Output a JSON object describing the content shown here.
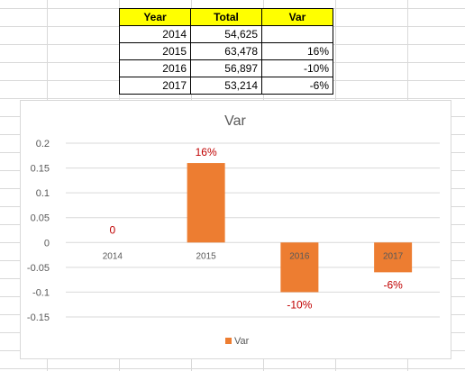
{
  "table": {
    "headers": [
      "Year",
      "Total",
      "Var"
    ],
    "rows": [
      {
        "year": "2014",
        "total": "54,625",
        "var": ""
      },
      {
        "year": "2015",
        "total": "63,478",
        "var": "16%"
      },
      {
        "year": "2016",
        "total": "56,897",
        "var": "-10%"
      },
      {
        "year": "2017",
        "total": "53,214",
        "var": "-6%"
      }
    ]
  },
  "chart_data": {
    "type": "bar",
    "title": "Var",
    "categories": [
      "2014",
      "2015",
      "2016",
      "2017"
    ],
    "series": [
      {
        "name": "Var",
        "values": [
          0,
          0.16,
          -0.1,
          -0.06
        ],
        "labels": [
          "0",
          "16%",
          "-10%",
          "-6%"
        ],
        "color": "#ed7d31"
      }
    ],
    "yticks": [
      "0.2",
      "0.15",
      "0.1",
      "0.05",
      "0",
      "-0.05",
      "-0.1",
      "-0.15"
    ],
    "ylim": [
      -0.15,
      0.2
    ],
    "grid": true,
    "legend": "bottom",
    "data_label_color": "#c00000"
  }
}
